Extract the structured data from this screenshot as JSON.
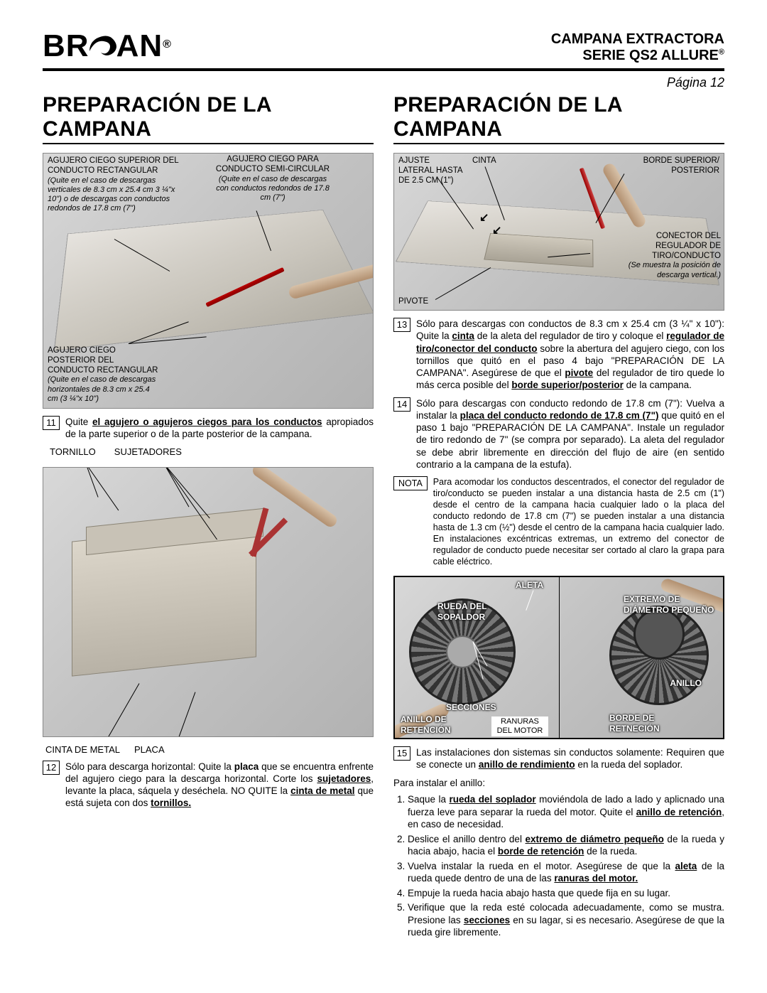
{
  "header": {
    "brand": "BROAN",
    "brand_trademark": "®",
    "title_line1": "CAMPANA EXTRACTORA",
    "title_line2": "SERIE QS2 ALLURE",
    "page_label": "Página 12"
  },
  "colors": {
    "text": "#000000",
    "rule": "#000000",
    "figure_bg_light": "#d8d8d8",
    "figure_bg_dark": "#b2b2b2",
    "tool_red": "#b00000"
  },
  "left": {
    "section_title": "PREPARACIÓN DE LA CAMPANA",
    "fig1": {
      "top_left_label": "AGUJERO CIEGO SUPERIOR DEL CONDUCTO RECTANGULAR",
      "top_left_sub": "(Quite en el caso de descargas verticales de 8.3 cm x 25.4 cm 3 ¼\"x 10\") o de descargas con conductos redondos de 17.8 cm (7\")",
      "top_right_label": "AGUJERO CIEGO PARA CONDUCTO SEMI-CIRCULAR",
      "top_right_sub": "(Quite en el caso de descargas con conductos redondos de 17.8 cm (7\")",
      "bottom_left_label": "AGUJERO CIEGO POSTERIOR DEL CONDUCTO RECTANGULAR",
      "bottom_left_sub": "(Quite en el caso de descargas horizontales de 8.3 cm x 25.4 cm (3 ¼\"x 10\")"
    },
    "step11_num": "11",
    "step11_text_pre": "Quite ",
    "step11_text_u": "el agujero o agujeros ciegos para los conductos",
    "step11_text_post": " apropiados de la parte superior o de la parte posterior de la campana.",
    "labels_row1_a": "TORNILLO",
    "labels_row1_b": "SUJETADORES",
    "labels_row2_a": "CINTA DE METAL",
    "labels_row2_b": "PLACA",
    "step12_num": "12",
    "step12_text": "Sólo para descarga horizontal: Quite la <b>placa</b> que se encuentra enfrente del agujero ciego para la descarga horizontal. Corte los <b><u>sujetadores</u></b>, levante la placa, sáquela y deséchela. NO QUITE la <b><u>cinta de metal</u></b> que está sujeta con dos <b><u>tornillos.</u></b>"
  },
  "right": {
    "section_title": "PREPARACIÓN DE LA CAMPANA",
    "fig3": {
      "ajuste": "AJUSTE LATERAL HASTA DE 2.5 CM (1\")",
      "cinta": "CINTA",
      "borde": "BORDE SUPERIOR/ POSTERIOR",
      "conector": "CONECTOR DEL REGULADOR DE TIRO/CONDUCTO",
      "conector_sub": "(Se muestra la posición de descarga vertical.)",
      "pivote": "PIVOTE"
    },
    "step13_num": "13",
    "step13_text": "Sólo para descargas con conductos de 8.3 cm x 25.4 cm (3 ¼\" x 10\"): Quite la <b><u>cinta</u></b> de la aleta del regulador de tiro y coloque el <b><u>regulador de tiro/conector del conducto</u></b> sobre la abertura del agujero ciego, con los tornillos que quitó en el paso 4 bajo \"PREPARACIÓN DE LA CAMPANA\". Asegúrese de que el <b><u>pivote</u></b> del regulador de tiro quede lo más cerca posible del <b><u>borde superior/posterior</u></b> de la campana.",
    "step14_num": "14",
    "step14_text": "Sólo para descargas con conducto redondo de 17.8 cm (7\"): Vuelva a instalar la <b><u>placa del conducto redondo de 17.8 cm (7\")</u></b> que quitó en el paso 1 bajo \"PREPARACIÓN DE LA CAMPANA\". Instale un regulador de tiro redondo de 7\" (se compra por separado). La aleta del regulador se debe abrir libremente en dirección del flujo de aire (en sentido contrario a la campana de la estufa).",
    "nota_label": "NOTA",
    "nota_text": "Para acomodar los conductos descentrados, el conector del regulador de tiro/conducto se pueden instalar a una distancia hasta de 2.5 cm (1\") desde el centro de la campana hacia cualquier lado o la placa del conducto redondo de 17.8 cm (7\") se pueden instalar a una distancia hasta de 1.3 cm (½\") desde el centro de la campana hacia cualquier lado. En instalaciones excéntricas extremas, un extremo del conector de regulador de conducto puede necesitar ser cortado al claro la grapa para cable eléctrico.",
    "fig4": {
      "rueda": "RUEDA DEL SOPALDOR",
      "aleta": "ALETA",
      "extremo": "EXTREMO DE DIÁMETRO PEQUEÑO",
      "secciones": "SECCIONES",
      "anillo_ret": "ANILLO DE RETENCIÓN",
      "ranuras": "RANURAS DEL MOTOR",
      "borde_ret": "BORDE DE RETNECIÓN",
      "anillo": "ANILLO"
    },
    "step15_num": "15",
    "step15_text": "Las instalaciones don sistemas sin conductos solamente: Requiren que se conecte un <b><u>anillo de rendimiento</u></b> en la rueda del soplador.",
    "install_intro": "Para instalar el anillo:",
    "install_items": [
      "Saque la <b><u>rueda del soplador</u></b> moviéndola de lado a lado y aplicnado una fuerza leve para separar la rueda del motor. Quite el <b><u>anillo de retención</u></b>, en caso de necesidad.",
      "Deslice el anillo dentro del <b><u>extremo de diámetro pequeño</u></b> de la rueda y hacia abajo, hacia el <b><u>borde de retención</u></b> de la rueda.",
      "Vuelva instalar la rueda en el motor. Asegúrese de que la <b><u>aleta</u></b> de la rueda quede dentro de una de las <b><u>ranuras del motor.</u></b>",
      "Empuje la rueda hacia abajo hasta que quede fija en su lugar.",
      "Verifique que la reda esté colocada adecuadamente, como se mustra. Presione las <b><u>secciones</u></b> en su lagar, si es necesario. Asegúrese de que la rueda gire libremente."
    ]
  }
}
